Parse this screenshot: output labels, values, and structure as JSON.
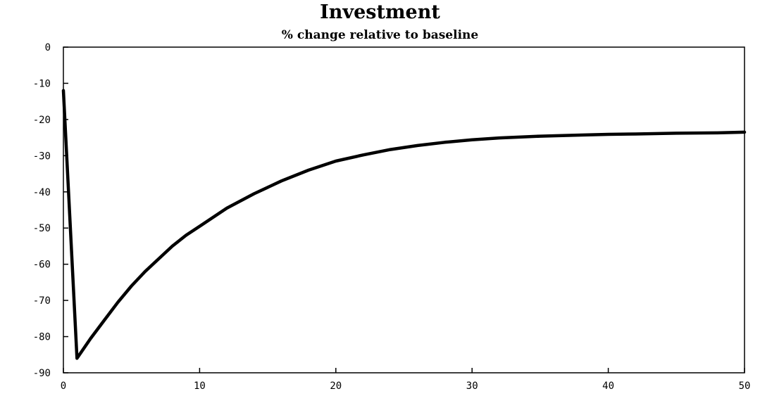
{
  "chart_data": {
    "type": "line",
    "title": "Investment",
    "subtitle": "% change relative to baseline",
    "xlabel": "",
    "ylabel": "",
    "xlim": [
      0,
      50
    ],
    "ylim": [
      -90,
      0
    ],
    "x_ticks": [
      0,
      10,
      20,
      30,
      40,
      50
    ],
    "x_tick_labels": [
      "0",
      "10",
      "20",
      "30",
      "40",
      "50"
    ],
    "y_ticks": [
      0,
      -10,
      -20,
      -30,
      -40,
      -50,
      -60,
      -70,
      -80,
      -90
    ],
    "y_tick_labels": [
      "0",
      "-10",
      "-20",
      "-30",
      "-40",
      "-50",
      "-60",
      "-70",
      "-80",
      "-90"
    ],
    "grid": false,
    "legend": "none",
    "line_color": "#000000",
    "series": [
      {
        "x": [
          0,
          1,
          2,
          3,
          4,
          5,
          6,
          7,
          8,
          9,
          10,
          12,
          14,
          16,
          18,
          20,
          22,
          24,
          26,
          28,
          30,
          32,
          35,
          38,
          40,
          42,
          45,
          48,
          50
        ],
        "values": [
          -12,
          -86,
          -80.5,
          -75.5,
          -70.5,
          -66,
          -62,
          -58.5,
          -55,
          -52,
          -49.5,
          -44.5,
          -40.5,
          -37,
          -34,
          -31.5,
          -29.8,
          -28.3,
          -27.2,
          -26.3,
          -25.6,
          -25.1,
          -24.6,
          -24.3,
          -24.1,
          -24.0,
          -23.8,
          -23.7,
          -23.5
        ]
      }
    ]
  }
}
